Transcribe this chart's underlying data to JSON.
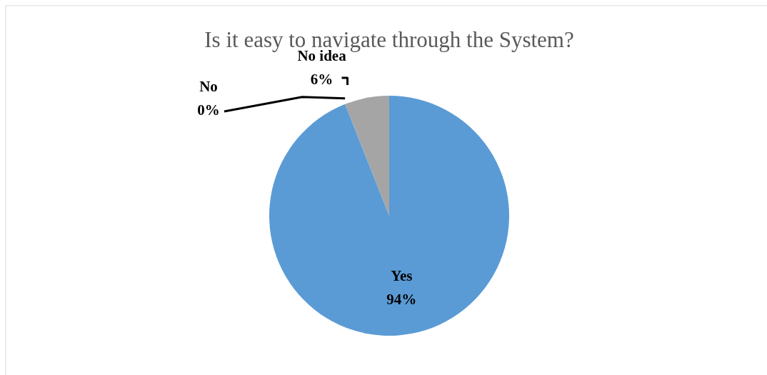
{
  "chart_data": {
    "type": "pie",
    "title": "Is it easy to navigate through the System?",
    "categories": [
      "Yes",
      "No",
      "No idea"
    ],
    "values": [
      94,
      0,
      6
    ],
    "colors": [
      "#5b9bd5",
      "#ed7d31",
      "#a5a5a5"
    ],
    "value_labels": [
      "94%",
      "0%",
      "6%"
    ]
  }
}
